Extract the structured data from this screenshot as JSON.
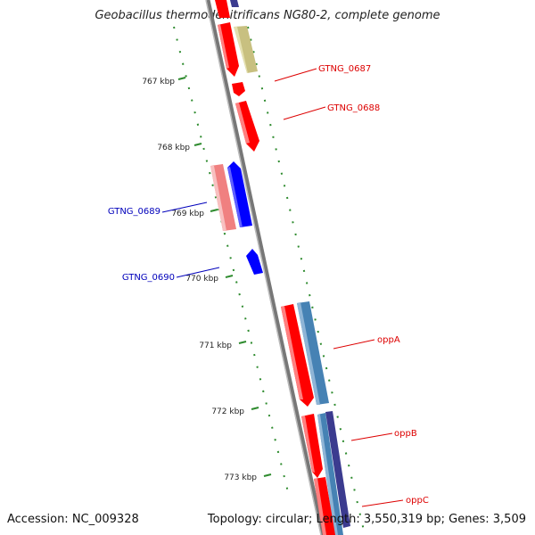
{
  "title": "Geobacillus thermodenitrificans NG80-2, complete genome",
  "footer": {
    "accession": "Accession: NC_009328",
    "summary": "Topology: circular; Length: 3,550,319 bp; Genes: 3,509"
  },
  "kbp_ticks": [
    "767 kbp",
    "768 kbp",
    "769 kbp",
    "770 kbp",
    "771 kbp",
    "772 kbp",
    "773 kbp"
  ],
  "gene_labels": [
    {
      "name": "GTNG_0687",
      "color": "#dd0000"
    },
    {
      "name": "GTNG_0688",
      "color": "#dd0000"
    },
    {
      "name": "GTNG_0689",
      "color": "#0000bb"
    },
    {
      "name": "GTNG_0690",
      "color": "#0000bb"
    },
    {
      "name": "oppA",
      "color": "#dd0000"
    },
    {
      "name": "oppB",
      "color": "#dd0000"
    },
    {
      "name": "oppC",
      "color": "#dd0000"
    }
  ],
  "colors": {
    "forward_cds": "#ff0000",
    "reverse_cds": "#0000ff",
    "pink_cds": "#f08080",
    "olive_feature": "#c8c080",
    "steelblue_feature": "#4682b4",
    "navy_feature": "#3b3b8f",
    "backbone": "#888888",
    "tick": "#2e8b2e"
  }
}
